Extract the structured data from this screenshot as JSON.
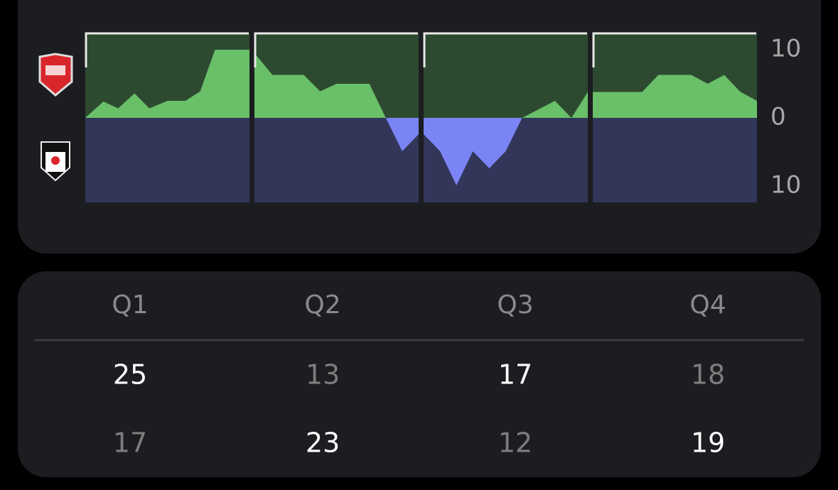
{
  "chart_data": {
    "type": "area",
    "ylim": [
      -12.4,
      12.4
    ],
    "yticks": [
      10,
      0,
      {
        "value": -10,
        "label": "10"
      }
    ],
    "xlim": [
      0,
      10
    ],
    "positive_color": "#6abf69",
    "negative_color": "#7b84f5",
    "positive_background": "#2d4a30",
    "negative_background": "#323658",
    "panels": [
      {
        "x": [
          0,
          1.1,
          2,
          3,
          3.9,
          5,
          6.1,
          7,
          7.9,
          10
        ],
        "values": [
          0,
          2.4,
          1.4,
          3.6,
          1.4,
          2.5,
          2.5,
          3.9,
          10,
          10
        ]
      },
      {
        "x": [
          0,
          1.1,
          3,
          4,
          5,
          7,
          8,
          9,
          10
        ],
        "values": [
          9.5,
          6.3,
          6.3,
          3.9,
          5,
          5,
          0,
          -4.9,
          -2.4
        ]
      },
      {
        "x": [
          0,
          1,
          2,
          3,
          4,
          5,
          6,
          8,
          9,
          10
        ],
        "values": [
          -2.4,
          -4.9,
          -9.9,
          -4.9,
          -7.4,
          -4.9,
          0,
          2.5,
          0,
          3.8
        ]
      },
      {
        "x": [
          0,
          3,
          4,
          6,
          7,
          8,
          9,
          10
        ],
        "values": [
          3.8,
          3.8,
          6.3,
          6.3,
          5,
          6.3,
          3.8,
          2.5
        ]
      }
    ]
  },
  "table": {
    "header": [
      "Q1",
      "Q2",
      "Q3",
      "Q4"
    ],
    "rows": [
      [
        25,
        13,
        17,
        18
      ],
      [
        17,
        23,
        12,
        19
      ]
    ]
  }
}
